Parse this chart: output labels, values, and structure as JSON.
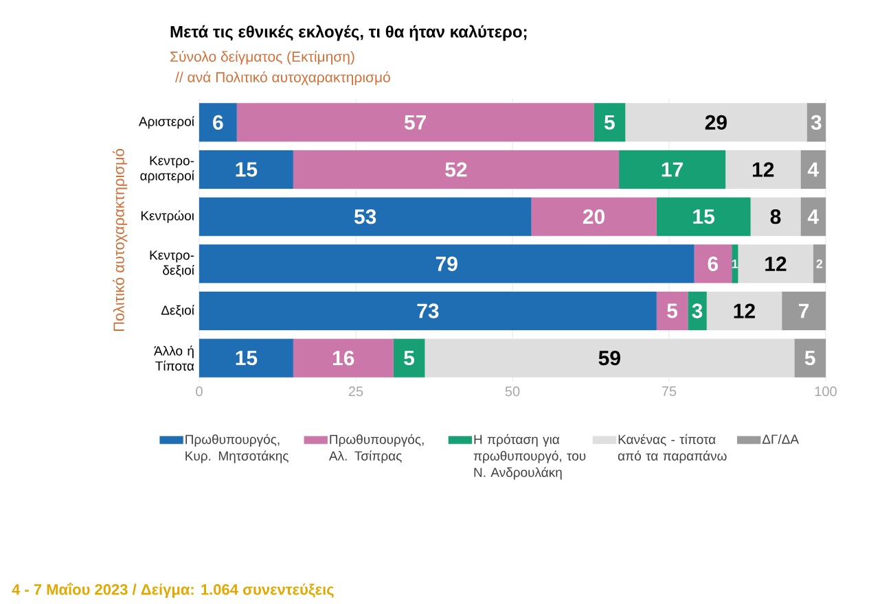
{
  "chart_data": {
    "type": "bar",
    "orientation": "horizontal",
    "stacked": true,
    "title": "Μετά τις εθνικές εκλογές, τι θα ήταν καλύτερο;",
    "subtitle": "Σύνολο δείγματος  (Εκτίμηση)",
    "ylabel": "Πολιτικό αυτοχαρακτηρισμό",
    "annotations": [
      "// ανά Πολιτικό αυτοχαρακτηρισμό",
      "4 - 7 Μαΐου 2023  /  Δείγμα:  1.064 συνεντεύξεις"
    ],
    "categories": [
      "Αριστεροί",
      "Κεντρο-αριστεροί",
      "Κεντρώοι",
      "Κεντρο-δεξιοί",
      "Δεξιοί",
      "Άλλο ή Τίποτα"
    ],
    "series": [
      {
        "name": "Πρωθυπουργός, Κυρ. Μητσοτάκης",
        "color": "#1f6db3",
        "values": [
          6,
          15,
          53,
          79,
          73,
          15
        ]
      },
      {
        "name": "Πρωθυπουργός, Αλ. Τσίπρας",
        "color": "#cc77aa",
        "values": [
          57,
          52,
          20,
          6,
          5,
          16
        ]
      },
      {
        "name": "Η πρόταση για πρωθυπουργό, του Ν. Ανδρουλάκη",
        "color": "#17a073",
        "values": [
          5,
          17,
          15,
          1,
          3,
          5
        ]
      },
      {
        "name": "Κανένας - τίποτα από τα παραπάνω",
        "color": "#dedede",
        "values": [
          29,
          12,
          8,
          12,
          12,
          59
        ]
      },
      {
        "name": "ΔΓ/ΔΑ",
        "color": "#9a9a9a",
        "values": [
          3,
          4,
          4,
          2,
          7,
          5
        ]
      }
    ],
    "xlim": [
      0,
      100
    ],
    "xticks": [
      0,
      25,
      50,
      75,
      100
    ],
    "grid": "x",
    "legend": "bottom",
    "data_labels": true
  }
}
